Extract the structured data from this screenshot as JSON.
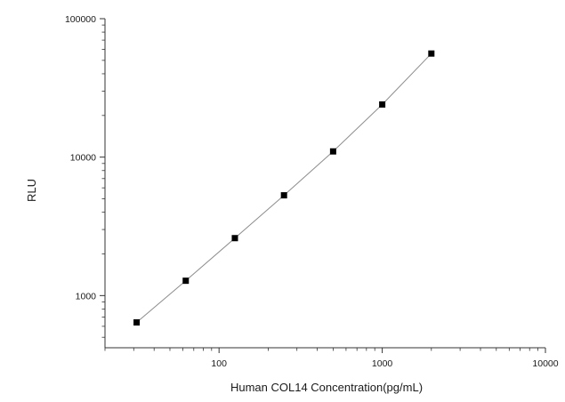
{
  "chart_data": {
    "type": "scatter",
    "title": "",
    "xlabel": "Human COL14 Concentration(pg/mL)",
    "ylabel": "RLU",
    "x_scale": "log",
    "y_scale": "log",
    "xlim": [
      20,
      10000
    ],
    "ylim": [
      420,
      100000
    ],
    "x_ticks": [
      100,
      1000,
      10000
    ],
    "x_tick_labels": [
      "100",
      "1000",
      "10000"
    ],
    "y_ticks": [
      1000,
      10000,
      100000
    ],
    "y_tick_labels": [
      "1000",
      "10000",
      "100000"
    ],
    "grid": false,
    "legend": "none",
    "series": [
      {
        "x": [
          31.25,
          62.5,
          125,
          250,
          500,
          1000,
          2000
        ],
        "y": [
          640,
          1280,
          2600,
          5300,
          11000,
          24000,
          56000
        ],
        "marker": "square",
        "fit_line": true
      }
    ],
    "colors": {
      "marker": "#000000",
      "fit_line": "#8c8c8c",
      "axis": "#333333"
    }
  }
}
